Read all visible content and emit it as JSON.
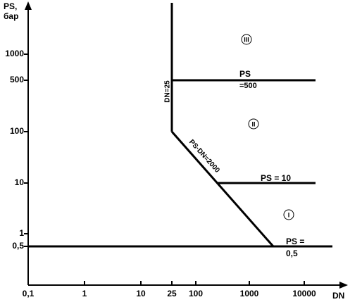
{
  "axes": {
    "y_label": [
      "PS,",
      "бар"
    ],
    "x_label": "DN",
    "y_ticks": [
      "1000",
      "500",
      "100",
      "10",
      "1",
      "0,5"
    ],
    "x_ticks": [
      "0,1",
      "1",
      "10",
      "25",
      "100",
      "1000",
      "10000"
    ]
  },
  "lines": {
    "dn25": "DN=25",
    "ps500": [
      "PS",
      "=500"
    ],
    "psdn": "PS·DN=2000",
    "ps10": "PS = 10",
    "ps05": [
      "PS =",
      "0,5"
    ]
  },
  "regions": [
    "I",
    "II",
    "III"
  ]
}
